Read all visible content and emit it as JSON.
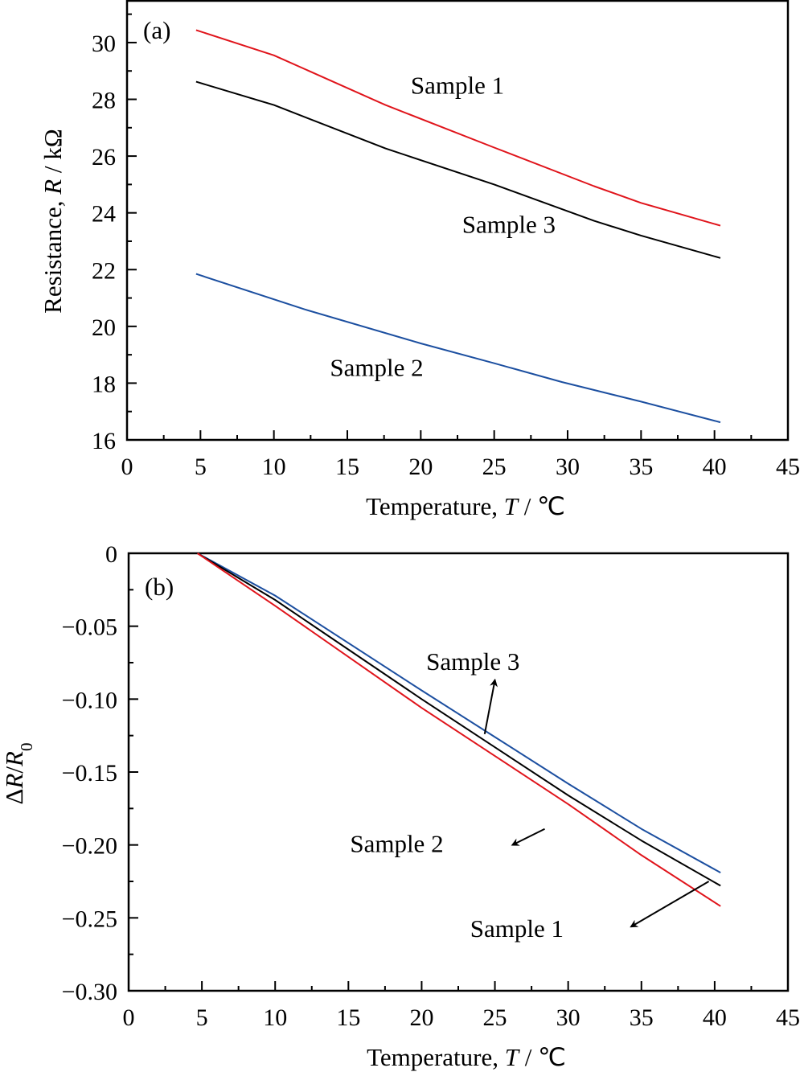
{
  "chart_data": [
    {
      "type": "line",
      "panel_label": "(a)",
      "xlabel": "Temperature, T / ℃",
      "xlabel_parts": [
        "Temperature, ",
        "T",
        " / ℃"
      ],
      "ylabel": "Resistance, R / kΩ",
      "ylabel_parts": [
        "Resistance, ",
        "R",
        " / kΩ"
      ],
      "xlim": [
        0,
        45
      ],
      "ylim": [
        16,
        31.5
      ],
      "xticks": [
        0,
        5,
        10,
        15,
        20,
        25,
        30,
        35,
        40,
        45
      ],
      "xtick_labels": [
        "0",
        "5",
        "10",
        "15",
        "20",
        "25",
        "30",
        "35",
        "40",
        "45"
      ],
      "yticks": [
        16,
        18,
        20,
        22,
        24,
        26,
        28,
        30
      ],
      "ytick_labels": [
        "16",
        "18",
        "20",
        "22",
        "24",
        "26",
        "28",
        "30"
      ],
      "grid": false,
      "legend": "none",
      "series": [
        {
          "name": "Sample 1",
          "color": "#e0141b",
          "x": [
            4.7,
            10,
            17.6,
            25,
            31.8,
            35,
            40.4
          ],
          "y": [
            30.44,
            29.55,
            27.8,
            26.3,
            24.94,
            24.35,
            23.55
          ]
        },
        {
          "name": "Sample 3",
          "color": "#000000",
          "x": [
            4.7,
            10,
            17.6,
            25,
            31.8,
            35,
            40.4
          ],
          "y": [
            28.62,
            27.8,
            26.27,
            25.0,
            23.72,
            23.2,
            22.41
          ]
        },
        {
          "name": "Sample 2",
          "color": "#1c4fa0",
          "x": [
            4.7,
            12.1,
            20,
            25,
            29.6,
            35,
            40.4
          ],
          "y": [
            21.85,
            20.6,
            19.4,
            18.7,
            18.04,
            17.35,
            16.62
          ]
        }
      ],
      "annotations": [
        {
          "text": "Sample 1",
          "x": 22.5,
          "y": 28.2
        },
        {
          "text": "Sample 3",
          "x": 26,
          "y": 23.3
        },
        {
          "text": "Sample 2",
          "x": 17,
          "y": 18.25
        }
      ]
    },
    {
      "type": "line",
      "panel_label": "(b)",
      "xlabel": "Temperature, T / ℃",
      "xlabel_parts": [
        "Temperature, ",
        "T",
        " / ℃"
      ],
      "ylabel": "ΔR/R0",
      "ylabel_parts": [
        "Δ",
        "R",
        "/",
        "R",
        "0"
      ],
      "xlim": [
        0,
        45
      ],
      "ylim": [
        -0.3,
        0
      ],
      "xticks": [
        0,
        5,
        10,
        15,
        20,
        25,
        30,
        35,
        40,
        45
      ],
      "xtick_labels": [
        "0",
        "5",
        "10",
        "15",
        "20",
        "25",
        "30",
        "35",
        "40",
        "45"
      ],
      "yticks": [
        0,
        -0.05,
        -0.1,
        -0.15,
        -0.2,
        -0.25,
        -0.3
      ],
      "ytick_labels": [
        "0",
        "−0.05",
        "−0.10",
        "−0.15",
        "−0.20",
        "−0.25",
        "−0.30"
      ],
      "grid": false,
      "legend": "none",
      "series": [
        {
          "name": "Sample 3",
          "color": "#1c4fa0",
          "x": [
            4.7,
            10,
            20,
            25,
            30,
            35,
            40.4
          ],
          "y": [
            0,
            -0.029,
            -0.094,
            -0.126,
            -0.158,
            -0.189,
            -0.219
          ]
        },
        {
          "name": "Sample 1",
          "color": "#000000",
          "x": [
            4.7,
            10,
            20,
            25,
            30,
            35,
            40.4
          ],
          "y": [
            0,
            -0.032,
            -0.1,
            -0.133,
            -0.166,
            -0.197,
            -0.228
          ]
        },
        {
          "name": "Sample 2",
          "color": "#e0141b",
          "x": [
            4.7,
            10,
            20,
            25,
            30,
            35,
            40.4
          ],
          "y": [
            0,
            -0.036,
            -0.106,
            -0.139,
            -0.172,
            -0.207,
            -0.242
          ]
        }
      ],
      "annotations": [
        {
          "text": "Sample 3",
          "x": 23.5,
          "y": -0.08,
          "arrow_from": [
            25.0,
            -0.087
          ],
          "arrow_to": [
            24.3,
            -0.124
          ]
        },
        {
          "text": "Sample 2",
          "x": 18.3,
          "y": -0.205,
          "arrow_from": [
            26.2,
            -0.2
          ],
          "arrow_to": [
            28.4,
            -0.189
          ]
        },
        {
          "text": "Sample 1",
          "x": 26.5,
          "y": -0.263,
          "arrow_from": [
            34.3,
            -0.256
          ],
          "arrow_to": [
            39.6,
            -0.225
          ]
        }
      ]
    }
  ]
}
